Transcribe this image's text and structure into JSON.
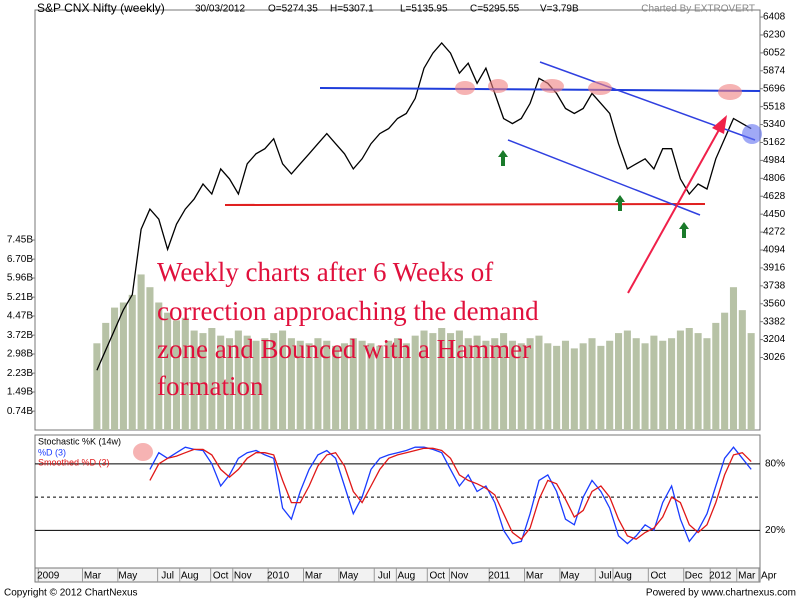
{
  "header": {
    "title": "S&P CNX Nifty (weekly)",
    "date": "30/03/2012",
    "open": "O=5274.35",
    "high": "H=5307.1",
    "low": "L=5135.95",
    "close": "C=5295.55",
    "volume": "V=3.79B",
    "credit": "Charted By EXTROVERT"
  },
  "footer": {
    "copyright": "Copyright © 2012 ChartNexus",
    "powered": "Powered by www.chartnexus.com"
  },
  "annotation": {
    "lines": [
      "Weekly charts after 6 Weeks of",
      "correction approaching the demand",
      "zone and Bounced with a Hammer",
      "formation"
    ]
  },
  "chart_data": [
    {
      "type": "line",
      "x": [
        13,
        15,
        17,
        19,
        21,
        23,
        25,
        27,
        29,
        31,
        33,
        35,
        37,
        39,
        41,
        43,
        45,
        47,
        49,
        51,
        53,
        55,
        57,
        59,
        61,
        63,
        65,
        67,
        69,
        71,
        73,
        75,
        77,
        79,
        81,
        83,
        85,
        87,
        89,
        91,
        93,
        95,
        97,
        99,
        101,
        103,
        105,
        107,
        109,
        111,
        113,
        115,
        117,
        119,
        121,
        123,
        125,
        127,
        129,
        131,
        133,
        135,
        137,
        139,
        141,
        143,
        145,
        147,
        149,
        151,
        153,
        155,
        157,
        159,
        161
      ],
      "xlim": [
        -1,
        163
      ],
      "xticks": [
        {
          "value": 2,
          "label": "2009"
        },
        {
          "value": 12,
          "label": "Mar"
        },
        {
          "value": 20,
          "label": "May"
        },
        {
          "value": 29,
          "label": "Jul"
        },
        {
          "value": 34,
          "label": "Aug"
        },
        {
          "value": 41,
          "label": "Oct"
        },
        {
          "value": 46,
          "label": "Nov"
        },
        {
          "value": 54,
          "label": "2010"
        },
        {
          "value": 62,
          "label": "Mar"
        },
        {
          "value": 70,
          "label": "May"
        },
        {
          "value": 78,
          "label": "Jul"
        },
        {
          "value": 83,
          "label": "Aug"
        },
        {
          "value": 90,
          "label": "Oct"
        },
        {
          "value": 95,
          "label": "Nov"
        },
        {
          "value": 104,
          "label": "2011"
        },
        {
          "value": 112,
          "label": "Mar"
        },
        {
          "value": 120,
          "label": "May"
        },
        {
          "value": 128,
          "label": "Jul"
        },
        {
          "value": 132,
          "label": "Aug"
        },
        {
          "value": 140,
          "label": "Oct"
        },
        {
          "value": 148,
          "label": "Dec"
        },
        {
          "value": 154,
          "label": "2012"
        },
        {
          "value": 160,
          "label": "Mar"
        },
        {
          "value": 165,
          "label": "Apr"
        }
      ],
      "ylim": [
        2306,
        6478
      ],
      "yticks": [
        6408,
        6230,
        6052,
        5874,
        5696,
        5518,
        5340,
        5162,
        4984,
        4806,
        4628,
        4450,
        4272,
        4094,
        3916,
        3738,
        3560,
        3382,
        3204,
        3026
      ],
      "y2lim": [
        0,
        16.47
      ],
      "y2ticks": [
        {
          "value": 7.45,
          "label": "7.45B"
        },
        {
          "value": 6.7,
          "label": "6.70B"
        },
        {
          "value": 5.96,
          "label": "5.96B"
        },
        {
          "value": 5.21,
          "label": "5.21B"
        },
        {
          "value": 4.47,
          "label": "4.47B"
        },
        {
          "value": 3.72,
          "label": "3.72B"
        },
        {
          "value": 2.98,
          "label": "2.98B"
        },
        {
          "value": 2.23,
          "label": "2.23B"
        },
        {
          "value": 1.49,
          "label": "1.49B"
        },
        {
          "value": 0.74,
          "label": "0.74B"
        }
      ],
      "series": [
        {
          "axis": "y2",
          "color": "#b7c2a6",
          "values": [
            3.4,
            4.2,
            4.8,
            5.0,
            5.3,
            6.1,
            5.6,
            5.0,
            4.6,
            4.3,
            4.4,
            3.9,
            3.8,
            4.0,
            3.7,
            3.6,
            3.9,
            3.7,
            3.5,
            3.6,
            3.8,
            3.9,
            3.6,
            3.5,
            3.4,
            3.6,
            3.5,
            3.3,
            3.4,
            3.6,
            3.5,
            3.4,
            3.3,
            3.5,
            3.6,
            3.4,
            3.7,
            3.9,
            3.8,
            4.0,
            3.8,
            3.9,
            3.6,
            3.7,
            3.5,
            3.6,
            3.8,
            3.5,
            3.4,
            3.6,
            3.7,
            3.4,
            3.3,
            3.5,
            3.2,
            3.4,
            3.6,
            3.3,
            3.5,
            3.8,
            3.9,
            3.6,
            3.4,
            3.7,
            3.5,
            3.6,
            3.9,
            4.0,
            3.8,
            3.6,
            4.2,
            4.6,
            5.6,
            4.7,
            3.8
          ]
        },
        {
          "color": "#000000",
          "values": [
            2900,
            3100,
            3300,
            3500,
            3650,
            4300,
            4500,
            4400,
            4100,
            4350,
            4500,
            4600,
            4750,
            4650,
            4900,
            4800,
            4650,
            4950,
            5050,
            5100,
            5200,
            4950,
            4850,
            4950,
            5050,
            5150,
            5250,
            5150,
            5050,
            4900,
            5000,
            5150,
            5250,
            5300,
            5400,
            5450,
            5600,
            5900,
            6050,
            6150,
            6050,
            5850,
            5950,
            5750,
            5900,
            5650,
            5400,
            5350,
            5400,
            5550,
            5800,
            5750,
            5650,
            5500,
            5450,
            5500,
            5650,
            5550,
            5450,
            5150,
            4900,
            4950,
            5000,
            4900,
            5100,
            5100,
            4800,
            4650,
            4750,
            4700,
            5000,
            5200,
            5400,
            5350,
            5300
          ]
        }
      ]
    },
    {
      "type": "line",
      "title": "Stochastic %K (14w)",
      "x": [
        13,
        15,
        17,
        19,
        21,
        23,
        25,
        27,
        29,
        31,
        33,
        35,
        37,
        39,
        41,
        43,
        45,
        47,
        49,
        51,
        53,
        55,
        57,
        59,
        61,
        63,
        65,
        67,
        69,
        71,
        73,
        75,
        77,
        79,
        81,
        83,
        85,
        87,
        89,
        91,
        93,
        95,
        97,
        99,
        101,
        103,
        105,
        107,
        109,
        111,
        113,
        115,
        117,
        119,
        121,
        123,
        125,
        127,
        129,
        131,
        133,
        135,
        137,
        139,
        141,
        143,
        145,
        147,
        149,
        151,
        153,
        155,
        157,
        159,
        161
      ],
      "xlim": [
        -1,
        163
      ],
      "ylim": [
        -14,
        106
      ],
      "yticks": [
        {
          "value": 80,
          "label": "80%"
        },
        {
          "value": 20,
          "label": "20%"
        }
      ],
      "midline": 50,
      "series": [
        {
          "name": "%D (3)",
          "color": "#1a3cff",
          "values": [
            null,
            null,
            null,
            null,
            null,
            null,
            75,
            90,
            85,
            90,
            95,
            93,
            92,
            80,
            60,
            70,
            85,
            90,
            92,
            88,
            85,
            40,
            30,
            55,
            75,
            88,
            92,
            85,
            60,
            35,
            50,
            75,
            85,
            88,
            90,
            92,
            95,
            95,
            93,
            90,
            75,
            60,
            70,
            55,
            60,
            45,
            20,
            8,
            10,
            35,
            65,
            70,
            55,
            30,
            25,
            50,
            65,
            55,
            40,
            15,
            8,
            15,
            25,
            20,
            45,
            60,
            30,
            10,
            20,
            35,
            60,
            85,
            95,
            85,
            75
          ]
        },
        {
          "name": "Smoothed %D (3)",
          "color": "#e01818",
          "values": [
            null,
            null,
            null,
            null,
            null,
            null,
            65,
            80,
            85,
            87,
            90,
            93,
            93,
            88,
            75,
            68,
            75,
            85,
            90,
            90,
            88,
            65,
            45,
            45,
            60,
            78,
            88,
            90,
            78,
            55,
            45,
            60,
            75,
            85,
            88,
            90,
            92,
            94,
            94,
            92,
            85,
            70,
            65,
            62,
            58,
            52,
            35,
            18,
            12,
            22,
            48,
            65,
            62,
            48,
            32,
            38,
            55,
            60,
            50,
            30,
            15,
            12,
            18,
            22,
            32,
            50,
            45,
            25,
            18,
            25,
            45,
            70,
            88,
            90,
            82
          ]
        }
      ]
    }
  ]
}
